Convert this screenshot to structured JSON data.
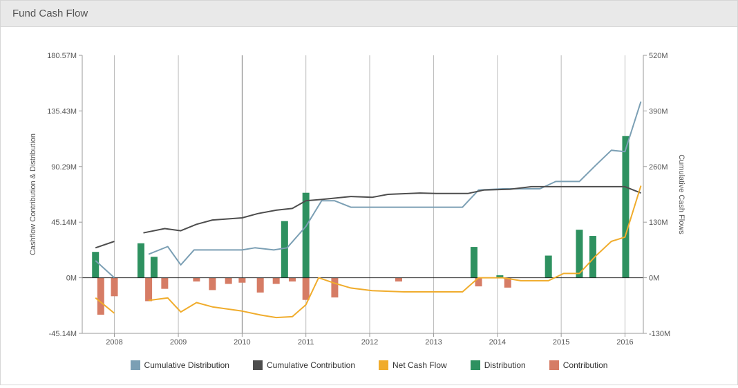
{
  "panel": {
    "title": "Fund Cash Flow"
  },
  "chart_data": {
    "type": "bar+line",
    "x_ticks": [
      "2008",
      "2009",
      "2010",
      "2011",
      "2012",
      "2013",
      "2014",
      "2015",
      "2016"
    ],
    "xlim": [
      "2007-07-01",
      "2016-04-15"
    ],
    "y_left": {
      "label": "Cashflow Contribution & Distribution",
      "ticks": [
        "180.57M",
        "135.43M",
        "90.29M",
        "45.14M",
        "0M",
        "-45.14M"
      ],
      "ylim": [
        -45.14,
        180.57
      ],
      "unit": "M"
    },
    "y_right": {
      "label": "Cumulative Cash Flows",
      "ticks": [
        "520M",
        "390M",
        "260M",
        "130M",
        "0M",
        "-130M"
      ],
      "ylim": [
        -130,
        520
      ],
      "unit": "M"
    },
    "grid": "vertical",
    "legend_position": "bottom",
    "legend": [
      {
        "name": "Cumulative Distribution",
        "color": "#7b9fb4"
      },
      {
        "name": "Cumulative Contribution",
        "color": "#4d4d4d"
      },
      {
        "name": "Net Cash Flow",
        "color": "#f0ac2c"
      },
      {
        "name": "Distribution",
        "color": "#2e9160"
      },
      {
        "name": "Contribution",
        "color": "#d67c65"
      }
    ],
    "bars_distribution": [
      {
        "date": "2007-09-15",
        "value": 21
      },
      {
        "date": "2008-06-01",
        "value": 28
      },
      {
        "date": "2008-08-15",
        "value": 17
      },
      {
        "date": "2010-09-01",
        "value": 46
      },
      {
        "date": "2011-01-01",
        "value": 69
      },
      {
        "date": "2013-08-20",
        "value": 25
      },
      {
        "date": "2014-01-15",
        "value": 2
      },
      {
        "date": "2014-10-20",
        "value": 18
      },
      {
        "date": "2015-04-15",
        "value": 39
      },
      {
        "date": "2015-07-01",
        "value": 34
      },
      {
        "date": "2016-01-05",
        "value": 115
      }
    ],
    "bars_contribution": [
      {
        "date": "2007-10-15",
        "value": -30
      },
      {
        "date": "2008-01-01",
        "value": -15
      },
      {
        "date": "2008-07-15",
        "value": -19
      },
      {
        "date": "2008-10-15",
        "value": -9
      },
      {
        "date": "2009-04-15",
        "value": -3
      },
      {
        "date": "2009-07-15",
        "value": -10
      },
      {
        "date": "2009-10-15",
        "value": -5
      },
      {
        "date": "2010-01-01",
        "value": -4
      },
      {
        "date": "2010-04-15",
        "value": -12
      },
      {
        "date": "2010-07-15",
        "value": -5
      },
      {
        "date": "2010-10-15",
        "value": -3
      },
      {
        "date": "2011-01-01",
        "value": -18
      },
      {
        "date": "2011-06-15",
        "value": -16
      },
      {
        "date": "2012-06-15",
        "value": -3
      },
      {
        "date": "2013-09-15",
        "value": -7
      },
      {
        "date": "2014-03-01",
        "value": -8
      }
    ],
    "series_cumulative_distribution": [
      [
        [
          "2007-09-15",
          40
        ],
        [
          "2008-01-01",
          0
        ]
      ],
      [
        [
          "2008-07-15",
          55
        ],
        [
          "2008-11-01",
          73
        ],
        [
          "2009-01-15",
          30
        ],
        [
          "2009-04-01",
          65
        ],
        [
          "2010-01-01",
          65
        ],
        [
          "2010-03-15",
          70
        ],
        [
          "2010-07-01",
          65
        ],
        [
          "2010-09-15",
          70
        ],
        [
          "2011-01-01",
          120
        ],
        [
          "2011-04-01",
          180
        ],
        [
          "2011-06-15",
          180
        ],
        [
          "2011-09-15",
          165
        ],
        [
          "2013-06-15",
          165
        ],
        [
          "2013-09-15",
          205
        ],
        [
          "2014-02-01",
          208
        ],
        [
          "2014-09-01",
          208
        ],
        [
          "2014-12-01",
          225
        ],
        [
          "2015-04-15",
          225
        ],
        [
          "2015-07-15",
          262
        ],
        [
          "2015-10-15",
          298
        ],
        [
          "2016-01-01",
          295
        ],
        [
          "2016-04-01",
          412
        ]
      ]
    ],
    "series_cumulative_contribution": [
      [
        [
          "2007-09-15",
          70
        ],
        [
          "2008-01-01",
          85
        ]
      ],
      [
        [
          "2008-06-15",
          105
        ],
        [
          "2008-10-15",
          115
        ],
        [
          "2009-01-15",
          110
        ],
        [
          "2009-04-15",
          125
        ],
        [
          "2009-07-15",
          135
        ],
        [
          "2010-01-01",
          140
        ],
        [
          "2010-04-01",
          150
        ],
        [
          "2010-07-15",
          158
        ],
        [
          "2010-10-15",
          162
        ],
        [
          "2011-01-01",
          180
        ],
        [
          "2011-04-01",
          183
        ],
        [
          "2011-09-15",
          190
        ],
        [
          "2012-01-15,",
          188
        ],
        [
          "2012-04-15",
          195
        ],
        [
          "2012-10-15",
          198
        ],
        [
          "2013-01-15",
          197
        ],
        [
          "2013-07-15",
          197
        ],
        [
          "2013-10-15",
          205
        ],
        [
          "2014-03-15",
          207
        ],
        [
          "2014-07-15",
          213
        ],
        [
          "2015-04-15",
          213
        ],
        [
          "2016-01-01",
          213
        ],
        [
          "2016-04-01",
          198
        ]
      ]
    ],
    "series_net_cash_flow": [
      [
        [
          "2007-09-15",
          -47
        ],
        [
          "2008-01-01",
          -83
        ]
      ],
      [
        [
          "2008-07-15",
          -53
        ],
        [
          "2008-11-01",
          -47
        ],
        [
          "2009-01-15",
          -80
        ],
        [
          "2009-04-15",
          -58
        ],
        [
          "2009-07-15",
          -68
        ],
        [
          "2010-01-01",
          -78
        ],
        [
          "2010-04-15",
          -87
        ],
        [
          "2010-07-15",
          -93
        ],
        [
          "2010-10-15",
          -91
        ],
        [
          "2011-01-01",
          -63
        ],
        [
          "2011-03-15",
          0
        ],
        [
          "2011-06-15",
          -13
        ],
        [
          "2011-09-15",
          -24
        ],
        [
          "2012-01-15",
          -30
        ],
        [
          "2012-07-15",
          -33
        ],
        [
          "2013-06-15",
          -33
        ],
        [
          "2013-09-15",
          0
        ],
        [
          "2014-02-01",
          0
        ],
        [
          "2014-05-15",
          -7
        ],
        [
          "2014-10-20",
          -7
        ],
        [
          "2015-01-15",
          10
        ],
        [
          "2015-04-15",
          10
        ],
        [
          "2015-07-15",
          50
        ],
        [
          "2015-10-15",
          85
        ],
        [
          "2016-01-01",
          95
        ],
        [
          "2016-04-01",
          215
        ]
      ]
    ]
  }
}
